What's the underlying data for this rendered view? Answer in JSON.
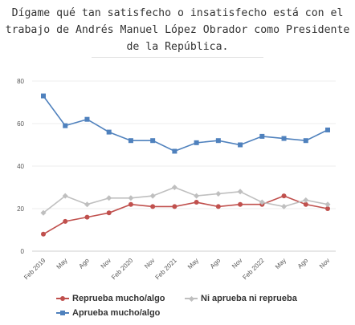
{
  "title": "Dígame qué tan satisfecho o insatisfecho está con el trabajo de Andrés Manuel López Obrador como Presidente de la República.",
  "title_lines": [
    "Dígame qué tan satisfecho o insatisfecho está con el",
    "trabajo de Andrés Manuel López Obrador como Presidente",
    "de la República."
  ],
  "chart_data": {
    "type": "line",
    "title": "Dígame qué tan satisfecho o insatisfecho está con el trabajo de Andrés Manuel López Obrador como Presidente de la República.",
    "xlabel": "",
    "ylabel": "",
    "ylim": [
      0,
      80
    ],
    "yticks": [
      0,
      20,
      40,
      60,
      80
    ],
    "grid": true,
    "legend_position": "bottom",
    "categories": [
      "Feb 2019",
      "May",
      "Ago",
      "Nov",
      "Feb 2020",
      "Nov",
      "Feb 2021",
      "May",
      "Ago",
      "Nov",
      "Feb 2022",
      "May",
      "Ago",
      "Nov"
    ],
    "series": [
      {
        "name": "Reprueba mucho/algo",
        "color": "#c0504d",
        "marker": "circle",
        "values": [
          8,
          14,
          16,
          18,
          22,
          21,
          21,
          23,
          21,
          22,
          22,
          26,
          22,
          20
        ]
      },
      {
        "name": "Aprueba mucho/algo",
        "color": "#4f81bd",
        "marker": "square",
        "values": [
          73,
          59,
          62,
          56,
          52,
          52,
          47,
          51,
          52,
          50,
          54,
          53,
          52,
          57
        ]
      },
      {
        "name": "Ni aprueba ni reprueba",
        "color": "#bfbfbf",
        "marker": "diamond",
        "values": [
          18,
          26,
          22,
          25,
          25,
          26,
          30,
          26,
          27,
          28,
          23,
          21,
          24,
          22
        ]
      }
    ]
  }
}
